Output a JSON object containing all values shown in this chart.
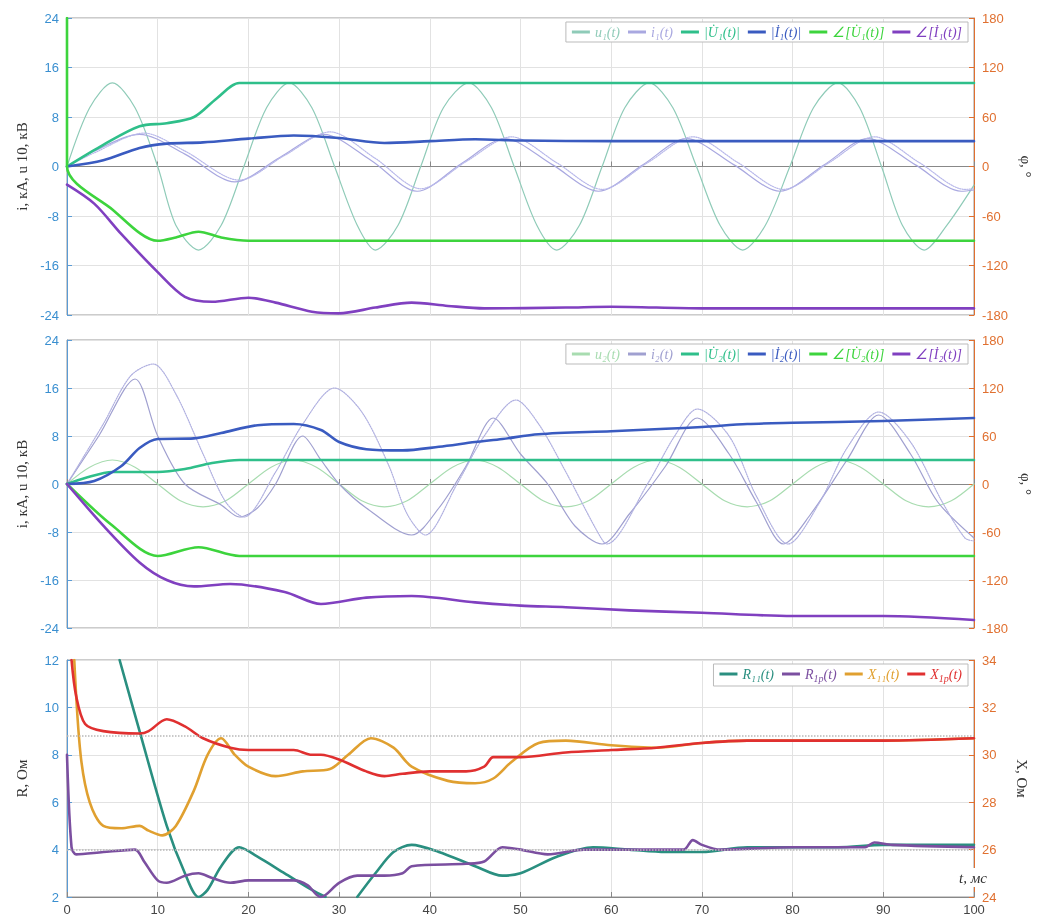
{
  "chart_data": [
    {
      "type": "line",
      "ylabel": "i, кА, u 10, кВ",
      "y2label": "φ, °",
      "xlim": [
        0,
        100
      ],
      "xticks": [
        0,
        10,
        20,
        30,
        40,
        50,
        60,
        70,
        80,
        90,
        100
      ],
      "ylim": [
        -24,
        24
      ],
      "yticks": [
        -24,
        -16,
        -8,
        0,
        8,
        16,
        24
      ],
      "y2lim": [
        -180,
        180
      ],
      "y2ticks": [
        -180,
        -120,
        -60,
        0,
        60,
        120,
        180
      ],
      "grid": true,
      "legend": "top right",
      "tick_labels": "y",
      "series": [
        {
          "name": "u₁(t)",
          "color": "#8fcbb8",
          "x": [
            0,
            2.5,
            5,
            7.5,
            10,
            12,
            14.5,
            17,
            19.5,
            22,
            24.5,
            27,
            29.5,
            32,
            34,
            36.5,
            39,
            41.5,
            44.3,
            46.8,
            49.3,
            51.8,
            54,
            56.5,
            59,
            61.5,
            64.2,
            66.8,
            69.4,
            72,
            74.5,
            77,
            79.7,
            82.3,
            85,
            87.4,
            89.8,
            92.1,
            94.5,
            97,
            100
          ],
          "values": [
            0,
            9.5,
            13.5,
            9.5,
            0,
            -9.5,
            -13.5,
            -9.5,
            0,
            9.5,
            13.5,
            9.5,
            0,
            -9.5,
            -13.5,
            -9.5,
            0,
            9.5,
            13.5,
            9.5,
            0,
            -9.5,
            -13.5,
            -9.5,
            0,
            9.5,
            13.5,
            9.5,
            0,
            -9.5,
            -13.5,
            -9.5,
            0,
            9.5,
            13.5,
            9.5,
            0,
            -9.5,
            -13.5,
            -9.5,
            -3
          ]
        },
        {
          "name": "i₁(t)",
          "color": "#a9a8e0",
          "x": [
            0,
            3,
            8,
            13,
            18.5,
            23.5,
            28.3,
            33.5,
            38.6,
            43.5,
            48.3,
            53.5,
            58.6,
            63.5,
            68.3,
            73.5,
            78.6,
            83.5,
            88.3,
            93.5,
            98.6,
            100
          ],
          "values": [
            0,
            2.5,
            5.2,
            2,
            -2.5,
            1.5,
            5.2,
            1,
            -4,
            0.5,
            4.5,
            0.3,
            -4,
            0.3,
            4.5,
            0.3,
            -4,
            0.3,
            4.5,
            0.3,
            -4,
            -3.8
          ]
        },
        {
          "color": "#b8b8ea",
          "line_style": "dotted",
          "x": [
            0,
            3,
            8.5,
            13,
            19,
            24,
            29,
            34,
            39,
            44,
            49,
            54,
            59,
            64,
            69,
            74,
            79,
            84,
            89,
            94,
            99,
            100
          ],
          "values": [
            0,
            2.2,
            5.4,
            2.5,
            -2.2,
            1.8,
            5.6,
            1.3,
            -3.6,
            0.8,
            4.8,
            0.6,
            -3.7,
            0.6,
            4.8,
            0.6,
            -3.7,
            0.6,
            4.8,
            0.6,
            -3.7,
            -3.6
          ]
        },
        {
          "name": "|U̇₁(t)|",
          "color": "#2fbf8a",
          "x": [
            0,
            4,
            8,
            11,
            14,
            16.5,
            19,
            25,
            100
          ],
          "values": [
            0,
            3.5,
            6.5,
            7,
            8,
            11,
            13.5,
            13.5,
            13.5
          ]
        },
        {
          "name": "|İ₁(t)|",
          "color": "#3a5bc0",
          "x": [
            0,
            4,
            8,
            11,
            15,
            20,
            25,
            30,
            35,
            40,
            45,
            50,
            60,
            70,
            80,
            90,
            100
          ],
          "values": [
            0,
            1,
            3,
            3.7,
            3.9,
            4.5,
            5,
            4.6,
            3.8,
            4.1,
            4.4,
            4.2,
            4.1,
            4.1,
            4.1,
            4.1,
            4.1
          ]
        },
        {
          "name": "∠[U̇₁(t)]",
          "color": "#3dd43d",
          "axis": "y2",
          "x": [
            0,
            0,
            5,
            10,
            12,
            14.5,
            17,
            20,
            100
          ],
          "values": [
            180,
            0,
            -52,
            -90,
            -86,
            -79,
            -86,
            -90,
            -90
          ]
        },
        {
          "name": "∠[İ₁(t)]",
          "color": "#8040c0",
          "axis": "y2",
          "x": [
            0,
            3,
            6,
            10,
            13,
            16,
            20,
            23,
            27,
            30,
            34,
            38,
            42,
            46,
            55,
            60,
            70,
            80,
            90,
            100
          ],
          "values": [
            -22,
            -45,
            -82,
            -128,
            -158,
            -164,
            -159,
            -165,
            -176,
            -178,
            -171,
            -165,
            -169,
            -172,
            -171,
            -170,
            -172,
            -172,
            -172,
            -172
          ]
        }
      ]
    },
    {
      "type": "line",
      "ylabel": "i, кА, u 10, кВ",
      "y2label": "φ, °",
      "xlim": [
        0,
        100
      ],
      "xticks": [
        0,
        10,
        20,
        30,
        40,
        50,
        60,
        70,
        80,
        90,
        100
      ],
      "ylim": [
        -24,
        24
      ],
      "yticks": [
        -24,
        -16,
        -8,
        0,
        8,
        16,
        24
      ],
      "y2lim": [
        -180,
        180
      ],
      "y2ticks": [
        -180,
        -120,
        -60,
        0,
        60,
        120,
        180
      ],
      "grid": true,
      "legend": "top right",
      "tick_labels": "y",
      "series": [
        {
          "name": "u₂(t)",
          "color": "#a8dcb0",
          "x": [
            0,
            2.5,
            5,
            7.5,
            10,
            12.5,
            15,
            17.5,
            20,
            22.5,
            25,
            27.5,
            30,
            32.5,
            35,
            37.5,
            40,
            42.5,
            45,
            47.5,
            50,
            52.5,
            55,
            57.5,
            60,
            62.5,
            65,
            67.5,
            70,
            72.5,
            75,
            77.5,
            80,
            82.5,
            85,
            87.5,
            90,
            92.5,
            95,
            97.5,
            100
          ],
          "values": [
            0,
            2.8,
            4,
            2.8,
            0,
            -2.8,
            -3.8,
            -2.8,
            0,
            2.8,
            4,
            2.8,
            0,
            -2.8,
            -3.8,
            -2.8,
            0,
            2.8,
            4,
            2.8,
            0,
            -2.8,
            -3.8,
            -2.8,
            0,
            2.8,
            4,
            2.8,
            0,
            -2.8,
            -3.8,
            -2.8,
            0,
            2.8,
            4,
            2.8,
            0,
            -2.8,
            -3.8,
            -2.8,
            0
          ]
        },
        {
          "name": "i₂(t)",
          "color": "#a0a0d0",
          "x": [
            0,
            3.5,
            7.5,
            10,
            13,
            17,
            19,
            21,
            23,
            26,
            28,
            30,
            33,
            38,
            41,
            44,
            47,
            50,
            53,
            56,
            59,
            62,
            66,
            69.5,
            73,
            76,
            79,
            82,
            86,
            89.5,
            93,
            96,
            100
          ],
          "values": [
            0,
            8,
            17.5,
            8,
            0,
            -3.5,
            -5.5,
            -4,
            0,
            8,
            4,
            0,
            -4,
            -8.5,
            -4,
            3,
            11,
            5,
            0,
            -7,
            -10,
            -5,
            3,
            11,
            5,
            -3,
            -10,
            -5,
            4,
            11.5,
            5,
            -3,
            -9
          ]
        },
        {
          "color": "#b0b0e0",
          "line_style": "dotted",
          "x": [
            0,
            4,
            7,
            9.5,
            12,
            15,
            17.5,
            19.5,
            23,
            26,
            29.5,
            32.5,
            35.5,
            37.5,
            39.5,
            43,
            46,
            49.5,
            52,
            55,
            58.5,
            59.5,
            64,
            67,
            69.5,
            73,
            76,
            79.5,
            83,
            86,
            89.5,
            93,
            96.5,
            99,
            100
          ],
          "values": [
            0,
            10,
            18,
            20,
            15,
            5,
            -3,
            -5.5,
            2,
            10,
            16,
            12,
            3,
            -5,
            -8.5,
            0,
            8,
            14,
            10,
            2,
            -8,
            -10,
            0,
            8,
            12.5,
            8,
            -2,
            -10,
            -3,
            6,
            12,
            7,
            -3,
            -9,
            -9.5
          ]
        },
        {
          "name": "|U̇₂(t)|",
          "color": "#2fbf8a",
          "x": [
            0,
            2,
            5,
            10,
            13,
            16,
            19,
            25,
            100
          ],
          "values": [
            0,
            1,
            2,
            2,
            2.5,
            3.5,
            4,
            4,
            4
          ]
        },
        {
          "name": "|İ₂(t)|",
          "color": "#3a5bc0",
          "x": [
            0,
            3,
            6,
            8,
            10,
            14,
            17,
            21,
            25,
            28,
            30,
            33,
            37,
            41,
            45,
            48,
            52,
            60,
            66,
            70,
            75,
            80,
            90,
            100
          ],
          "values": [
            0,
            0.5,
            3,
            6,
            7.5,
            7.6,
            8.5,
            9.8,
            10,
            9,
            7,
            5.8,
            5.6,
            6.2,
            7,
            7.5,
            8.3,
            8.8,
            9.2,
            9.5,
            10,
            10.2,
            10.5,
            11
          ]
        },
        {
          "name": "∠[U̇₂(t)]",
          "color": "#3dd43d",
          "axis": "y2",
          "x": [
            0,
            5,
            10,
            14.5,
            19,
            100
          ],
          "values": [
            0,
            -52,
            -90,
            -79,
            -90,
            -90
          ]
        },
        {
          "name": "∠[İ₂(t)]",
          "color": "#8040c0",
          "axis": "y2",
          "x": [
            0,
            4,
            8,
            11,
            14,
            18,
            24,
            28,
            33,
            38,
            45,
            50,
            55,
            62,
            70,
            80,
            90,
            100
          ],
          "values": [
            0,
            -52,
            -98,
            -120,
            -128,
            -125,
            -135,
            -150,
            -142,
            -140,
            -148,
            -152,
            -154,
            -158,
            -161,
            -165,
            -165,
            -170
          ]
        }
      ]
    },
    {
      "type": "line",
      "xlabel": "t, мс",
      "ylabel": "R, Ом",
      "y2label": "X, Ом",
      "xlim": [
        0,
        100
      ],
      "xticks": [
        0,
        10,
        20,
        30,
        40,
        50,
        60,
        70,
        80,
        90,
        100
      ],
      "ylim": [
        2,
        12
      ],
      "yticks": [
        2,
        4,
        6,
        8,
        10,
        12
      ],
      "y2lim": [
        24,
        34
      ],
      "y2ticks": [
        24,
        26,
        28,
        30,
        32,
        34
      ],
      "grid": true,
      "legend": "top right",
      "ref_lines": [
        {
          "axis": "y",
          "value": 8.8,
          "color": "#b8b8b8",
          "line_style": "dotted"
        },
        {
          "axis": "y",
          "value": 4,
          "color": "#b8b8b8",
          "line_style": "dotted"
        }
      ],
      "series": [
        {
          "name": "R₁₁(t)",
          "color": "#2a8f80",
          "x": [
            5.8,
            8,
            11,
            13,
            14.5,
            15.5,
            17,
            19,
            21,
            24,
            27,
            28.5,
            30,
            32,
            34,
            36,
            38,
            41,
            45,
            48,
            50,
            54,
            58,
            62,
            66,
            70,
            75,
            80,
            85,
            90,
            95,
            100
          ],
          "values": [
            12,
            9,
            5,
            3,
            2,
            2.3,
            3.3,
            4.1,
            3.7,
            3,
            2.3,
            2,
            null,
            2,
            3,
            3.9,
            4.2,
            3.9,
            3.3,
            2.9,
            3,
            3.7,
            4.1,
            4,
            3.9,
            3.9,
            4.1,
            4.1,
            4.1,
            4.2,
            4.2,
            4.2
          ]
        },
        {
          "name": "R$_{1р}$(t)",
          "color": "#7b4fa0",
          "x": [
            0,
            0.5,
            1,
            4,
            7.5,
            8.5,
            10,
            11,
            13,
            14.5,
            16,
            18,
            20,
            25,
            26.5,
            27.5,
            28,
            30,
            32,
            35,
            37,
            38,
            44,
            46,
            48,
            50,
            53,
            57,
            62,
            66,
            68,
            69,
            70,
            72,
            80,
            88,
            89,
            91,
            100
          ],
          "values": [
            8,
            4.1,
            3.8,
            3.9,
            4,
            3.5,
            2.7,
            2.6,
            2.9,
            3,
            2.8,
            2.6,
            2.7,
            2.7,
            2.5,
            2.1,
            2,
            2.6,
            2.9,
            2.9,
            3,
            3.3,
            3.4,
            3.5,
            4.1,
            4,
            3.8,
            4,
            4,
            4,
            4,
            4.4,
            4.2,
            4,
            4.1,
            4.1,
            4.3,
            4.2,
            4.1
          ]
        },
        {
          "name": "X₁₁(t)",
          "color": "#e0a030",
          "axis": "y2",
          "x": [
            0.8,
            1.5,
            2.5,
            4,
            6,
            8,
            9,
            10.5,
            12,
            14,
            15.5,
            17,
            18.5,
            20,
            23,
            26,
            29,
            31,
            33.5,
            36,
            38,
            42,
            45,
            47,
            49,
            52,
            55,
            60,
            65,
            70,
            75,
            80,
            90,
            100
          ],
          "values": [
            34,
            30,
            28,
            27,
            26.9,
            27,
            26.8,
            26.6,
            27,
            28.5,
            30,
            30.7,
            30,
            29.5,
            29.1,
            29.3,
            29.4,
            30,
            30.7,
            30.3,
            29.5,
            28.9,
            28.8,
            29,
            29.7,
            30.5,
            30.6,
            30.4,
            30.3,
            30.5,
            30.6,
            30.6,
            30.6,
            30.7
          ]
        },
        {
          "name": "X$_{1р}$(t)",
          "color": "#e03030",
          "axis": "y2",
          "x": [
            0.5,
            1,
            2,
            4,
            8,
            9,
            11,
            13,
            15,
            18,
            20,
            25,
            27,
            28,
            30,
            33,
            35,
            37,
            40,
            44,
            46,
            47,
            50,
            55,
            60,
            65,
            70,
            75,
            80,
            90,
            100
          ],
          "values": [
            34,
            32.5,
            31.3,
            31,
            30.9,
            31,
            31.5,
            31.2,
            30.7,
            30.3,
            30.2,
            30.2,
            30,
            30,
            29.8,
            29.3,
            29.1,
            29.2,
            29.3,
            29.3,
            29.5,
            29.9,
            29.9,
            30.1,
            30.2,
            30.3,
            30.5,
            30.6,
            30.6,
            30.6,
            30.7
          ]
        }
      ]
    }
  ]
}
